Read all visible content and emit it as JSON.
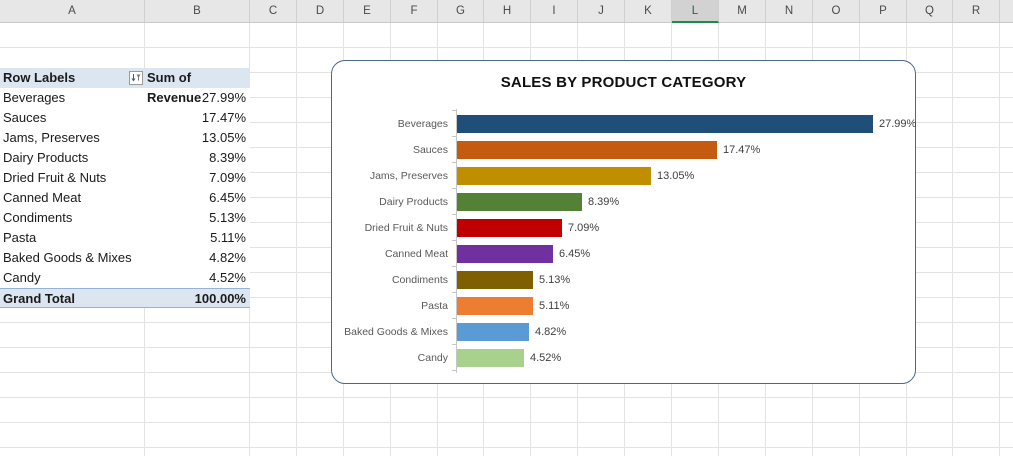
{
  "sheet": {
    "columns": [
      "A",
      "B",
      "C",
      "D",
      "E",
      "F",
      "G",
      "H",
      "I",
      "J",
      "K",
      "L",
      "M",
      "N",
      "O",
      "P",
      "Q",
      "R"
    ],
    "selected_column": "L"
  },
  "pivot": {
    "header": {
      "row_labels": "Row Labels",
      "values_label": "Sum of Revenue",
      "filter_icon": "filter-sort-icon"
    },
    "rows": [
      {
        "label": "Beverages",
        "value": "27.99%"
      },
      {
        "label": "Sauces",
        "value": "17.47%"
      },
      {
        "label": "Jams, Preserves",
        "value": "13.05%"
      },
      {
        "label": "Dairy Products",
        "value": "8.39%"
      },
      {
        "label": "Dried Fruit & Nuts",
        "value": "7.09%"
      },
      {
        "label": "Canned Meat",
        "value": "6.45%"
      },
      {
        "label": "Condiments",
        "value": "5.13%"
      },
      {
        "label": "Pasta",
        "value": "5.11%"
      },
      {
        "label": "Baked Goods & Mixes",
        "value": "4.82%"
      },
      {
        "label": "Candy",
        "value": "4.52%"
      }
    ],
    "grand_total": {
      "label": "Grand Total",
      "value": "100.00%"
    }
  },
  "chart_data": {
    "type": "bar",
    "orientation": "horizontal",
    "title": "SALES BY PRODUCT CATEGORY",
    "categories": [
      "Beverages",
      "Sauces",
      "Jams, Preserves",
      "Dairy Products",
      "Dried Fruit & Nuts",
      "Canned Meat",
      "Condiments",
      "Pasta",
      "Baked Goods & Mixes",
      "Candy"
    ],
    "values": [
      27.99,
      17.47,
      13.05,
      8.39,
      7.09,
      6.45,
      5.13,
      5.11,
      4.82,
      4.52
    ],
    "data_labels": [
      "27.99%",
      "17.47%",
      "13.05%",
      "8.39%",
      "7.09%",
      "6.45%",
      "5.13%",
      "5.11%",
      "4.82%",
      "4.52%"
    ],
    "bar_colors": [
      "#1f4e79",
      "#c55a11",
      "#bf8f00",
      "#538135",
      "#c00000",
      "#7030a0",
      "#7f6000",
      "#ed7d31",
      "#5b9bd5",
      "#a9d18e"
    ],
    "xlim": [
      0,
      30
    ],
    "gridlines": false,
    "value_axis_visible": false,
    "legend": "none",
    "border_color": "#47698e"
  }
}
